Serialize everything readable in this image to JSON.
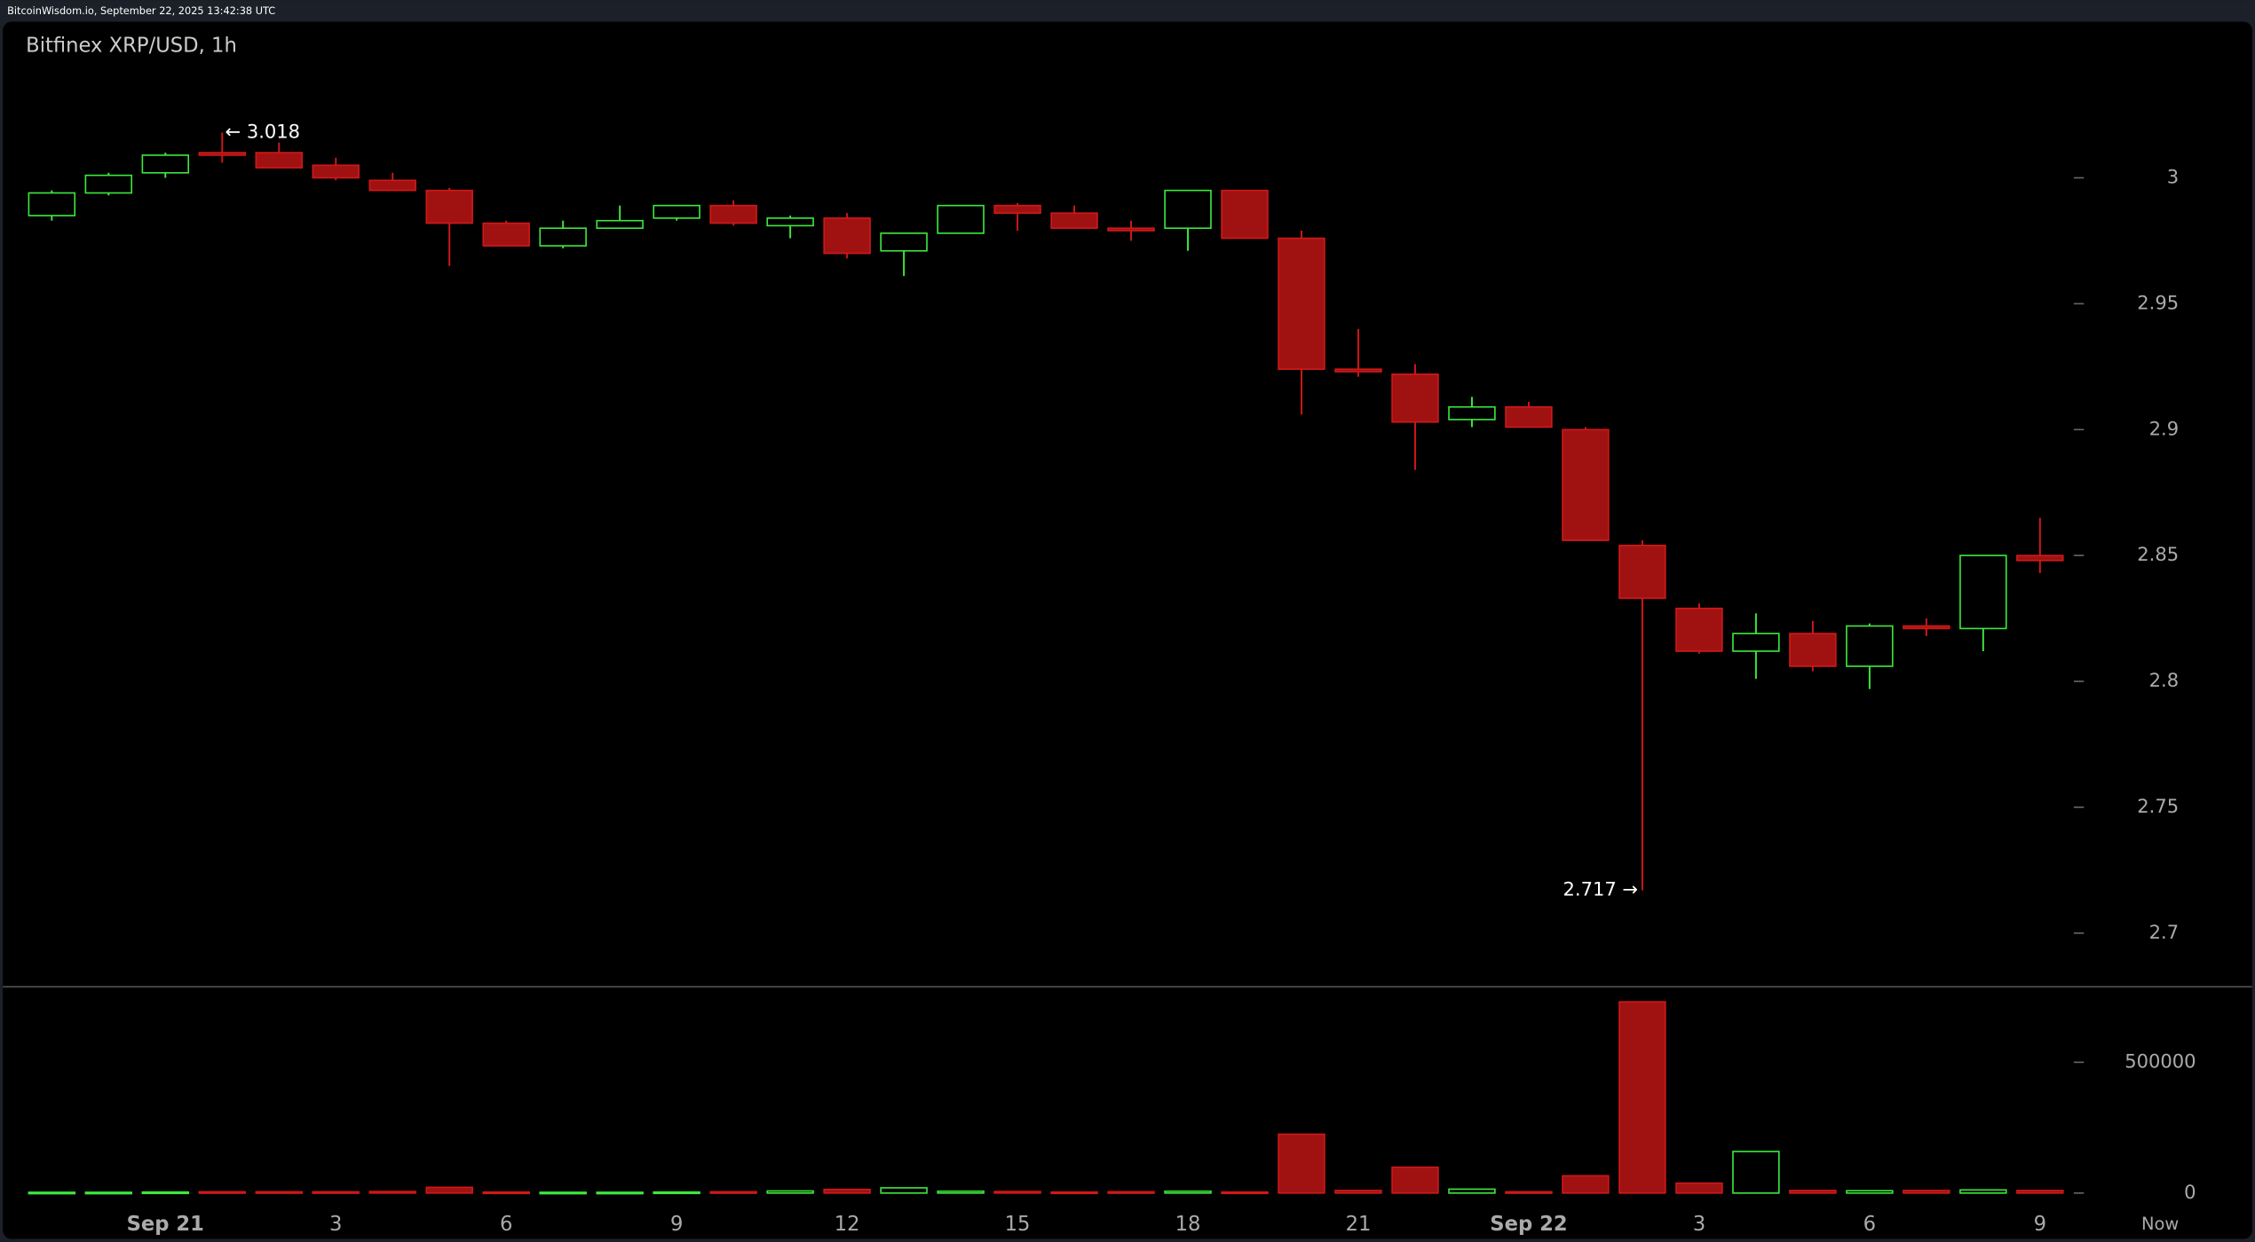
{
  "header": "BitcoinWisdom.io, September 22, 2025 13:42:38 UTC",
  "chart_data": {
    "type": "candlestick",
    "title": "Bitfinex XRP/USD, 1h",
    "categories": [
      null,
      null,
      "Sep 21",
      null,
      null,
      "3",
      null,
      null,
      "6",
      null,
      null,
      "9",
      null,
      null,
      "12",
      null,
      null,
      "15",
      null,
      null,
      "18",
      null,
      null,
      "21",
      null,
      null,
      "Sep 22",
      null,
      null,
      "3",
      null,
      null,
      "6",
      null,
      null,
      "9"
    ],
    "now_label": "Now",
    "open": [
      2.985,
      2.994,
      3.002,
      3.01,
      3.01,
      3.005,
      2.999,
      2.995,
      2.982,
      2.973,
      2.98,
      2.984,
      2.989,
      2.981,
      2.984,
      2.971,
      2.978,
      2.989,
      2.986,
      2.98,
      2.98,
      2.995,
      2.976,
      2.924,
      2.922,
      2.904,
      2.909,
      2.9,
      2.854,
      2.829,
      2.812,
      2.819,
      2.806,
      2.822,
      2.821,
      2.85
    ],
    "high": [
      2.995,
      3.002,
      3.01,
      3.018,
      3.014,
      3.008,
      3.002,
      2.996,
      2.983,
      2.983,
      2.989,
      2.989,
      2.991,
      2.985,
      2.986,
      2.978,
      2.989,
      2.99,
      2.989,
      2.983,
      2.995,
      2.995,
      2.979,
      2.94,
      2.926,
      2.913,
      2.911,
      2.901,
      2.856,
      2.831,
      2.827,
      2.824,
      2.823,
      2.825,
      2.85,
      2.865
    ],
    "low": [
      2.983,
      2.993,
      3.0,
      3.006,
      3.004,
      2.999,
      2.995,
      2.965,
      2.973,
      2.972,
      2.98,
      2.983,
      2.981,
      2.976,
      2.968,
      2.961,
      2.978,
      2.979,
      2.98,
      2.975,
      2.971,
      2.976,
      2.906,
      2.921,
      2.884,
      2.901,
      2.901,
      2.856,
      2.717,
      2.811,
      2.801,
      2.804,
      2.797,
      2.818,
      2.812,
      2.843
    ],
    "close": [
      2.994,
      3.001,
      3.009,
      3.009,
      3.004,
      3.0,
      2.995,
      2.982,
      2.973,
      2.98,
      2.983,
      2.989,
      2.982,
      2.984,
      2.97,
      2.978,
      2.989,
      2.986,
      2.98,
      2.979,
      2.995,
      2.976,
      2.924,
      2.923,
      2.903,
      2.909,
      2.901,
      2.856,
      2.833,
      2.812,
      2.819,
      2.806,
      2.822,
      2.821,
      2.85,
      2.848
    ],
    "volume": [
      3000,
      3000,
      4000,
      5000,
      5000,
      5000,
      6000,
      22000,
      4000,
      3000,
      3000,
      4000,
      5000,
      8000,
      14000,
      20000,
      7000,
      6000,
      4000,
      5000,
      7000,
      4000,
      225000,
      10000,
      99000,
      15000,
      5000,
      66000,
      731000,
      38000,
      159000,
      10000,
      9000,
      10000,
      12000,
      10000
    ],
    "up_color": "#3ce83c",
    "down_color": "#a01212",
    "down_edge": "#d01818",
    "ylim": [
      2.679,
      3.062
    ],
    "yticks": [
      2.7,
      2.75,
      2.8,
      2.85,
      2.9,
      2.95,
      3
    ],
    "vlim": [
      -82000,
      786000
    ],
    "vticks": [
      0,
      500000
    ],
    "annotations": [
      {
        "text": "← 3.018",
        "value": 3.018,
        "side": "high"
      },
      {
        "text": "2.717 →",
        "value": 2.717,
        "side": "low"
      }
    ]
  }
}
